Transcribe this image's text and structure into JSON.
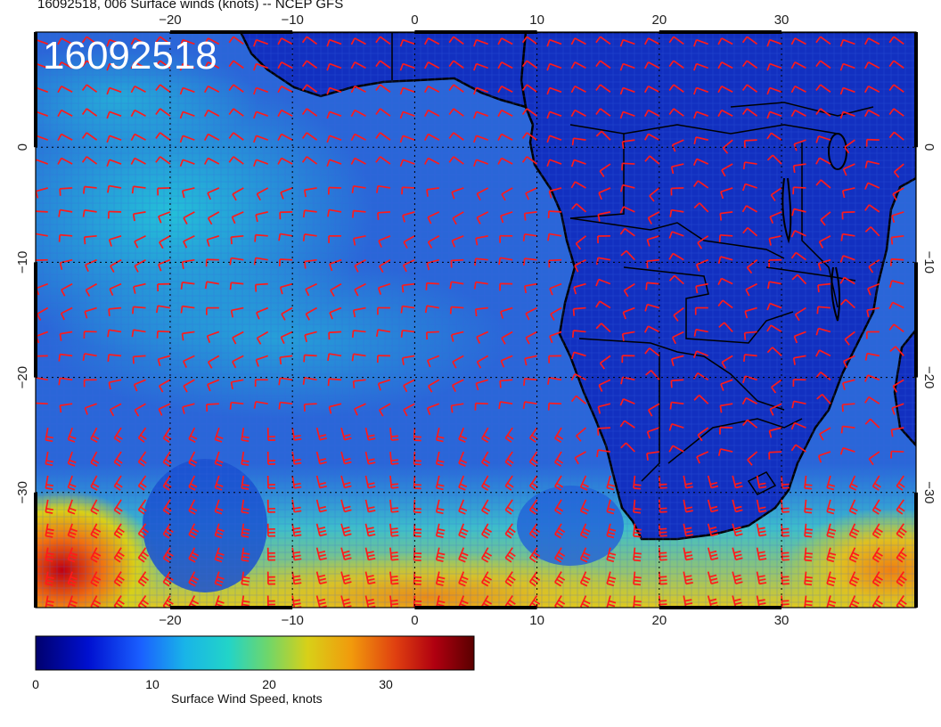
{
  "title": "16092518, 006 Surface winds (knots) -- NCEP GFS",
  "stamp": "16092518",
  "lon_ticks": [
    "−20",
    "−10",
    "0",
    "10",
    "20",
    "30"
  ],
  "lat_ticks": [
    "0",
    "−10",
    "−20",
    "−30"
  ],
  "colorbar": {
    "label": "Surface Wind Speed, knots",
    "ticks": [
      "0",
      "10",
      "20",
      "30"
    ],
    "colors": [
      "#00006e",
      "#0010d0",
      "#1a60ff",
      "#19b4e8",
      "#22d4c8",
      "#6fd66a",
      "#d8d018",
      "#f19a0c",
      "#e04010",
      "#b00010",
      "#5a0000"
    ]
  },
  "map": {
    "lon_range": [
      -31,
      41
    ],
    "lat_range": [
      -40,
      10
    ],
    "ocean_color": "#2a66d8",
    "land_color": "#1230c0",
    "barb_color": "#ff1a1a",
    "coast_color": "#000000"
  }
}
